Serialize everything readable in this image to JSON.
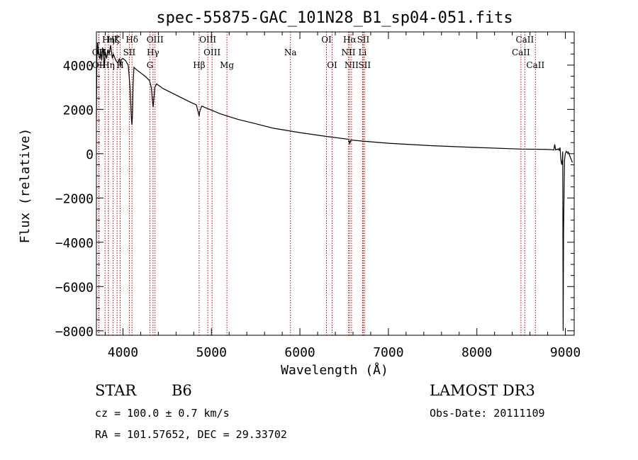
{
  "chart_data": {
    "type": "line",
    "title": "spec-55875-GAC_101N28_B1_sp04-051.fits",
    "xlabel": "Wavelength (Å)",
    "ylabel": "Flux (relative)",
    "xlim": [
      3700,
      9100
    ],
    "ylim": [
      -8200,
      5500
    ],
    "xticks": [
      4000,
      5000,
      6000,
      7000,
      8000,
      9000
    ],
    "xtick_labels": [
      "4000",
      "5000",
      "6000",
      "7000",
      "8000",
      "9000"
    ],
    "yticks": [
      4000,
      2000,
      0,
      -2000,
      -4000,
      -6000,
      -8000
    ],
    "ytick_labels": [
      "4000",
      "2000",
      "0",
      "−2000",
      "−4000",
      "−6000",
      "−8000"
    ],
    "series": [
      {
        "name": "spectrum",
        "color": "#000000",
        "x": [
          3700,
          3705,
          3712,
          3720,
          3730,
          3740,
          3750,
          3760,
          3770,
          3780,
          3790,
          3800,
          3815,
          3830,
          3845,
          3860,
          3880,
          3890,
          3900,
          3920,
          3940,
          3960,
          3970,
          3980,
          4000,
          4030,
          4060,
          4080,
          4095,
          4101,
          4107,
          4115,
          4125,
          4150,
          4200,
          4250,
          4300,
          4320,
          4335,
          4341,
          4347,
          4360,
          4380,
          4450,
          4550,
          4650,
          4750,
          4830,
          4855,
          4861,
          4867,
          4890,
          4950,
          5100,
          5300,
          5500,
          5700,
          6000,
          6300,
          6550,
          6563,
          6576,
          6700,
          7000,
          7500,
          8000,
          8500,
          8700,
          8800,
          8850,
          8870,
          8880,
          8890,
          8900,
          8910,
          8920,
          8930,
          8940,
          8950,
          8960,
          8968,
          8970,
          8975,
          8980,
          8990,
          9000,
          9010,
          9020,
          9030,
          9040,
          9050,
          9060,
          9070,
          9080
        ],
        "y": [
          1600,
          4200,
          5000,
          4800,
          4400,
          4300,
          4600,
          4200,
          4800,
          4500,
          3900,
          4600,
          4300,
          4700,
          4500,
          4900,
          4300,
          4500,
          4400,
          4200,
          4100,
          4300,
          3900,
          4250,
          4300,
          4200,
          4000,
          3000,
          1600,
          1300,
          1700,
          3200,
          3900,
          3800,
          3650,
          3500,
          3300,
          3000,
          2300,
          2100,
          2400,
          3000,
          3150,
          2950,
          2750,
          2550,
          2350,
          2200,
          1800,
          1700,
          1900,
          2150,
          2050,
          1800,
          1550,
          1350,
          1150,
          950,
          780,
          650,
          450,
          620,
          570,
          470,
          360,
          280,
          210,
          200,
          190,
          180,
          160,
          420,
          170,
          200,
          180,
          220,
          150,
          280,
          -300,
          -500,
          -200,
          100,
          -8000,
          -3500,
          -300,
          0,
          100,
          50,
          80,
          20,
          -100,
          -200,
          -300,
          -400
        ],
        "label": "spectrum"
      }
    ],
    "lines_top": [
      {
        "label": "Hη",
        "x": 3835
      },
      {
        "label": "Hζ",
        "x": 3889
      },
      {
        "label": "K",
        "x": 3934
      },
      {
        "label": "Hδ",
        "x": 4102
      },
      {
        "label": "OIII",
        "x": 4363
      },
      {
        "label": "OIII",
        "x": 4959
      },
      {
        "label": "OI",
        "x": 6300
      },
      {
        "label": "Hα",
        "x": 6563
      },
      {
        "label": "SII",
        "x": 6716
      },
      {
        "label": "CaII",
        "x": 8542
      }
    ],
    "lines_mid": [
      {
        "label": "OII",
        "x": 3727
      },
      {
        "label": "Hε",
        "x": 3798
      },
      {
        "label": "SII",
        "x": 4072
      },
      {
        "label": "Hγ",
        "x": 4340
      },
      {
        "label": "OIII",
        "x": 5007
      },
      {
        "label": "Na",
        "x": 5893
      },
      {
        "label": "NII",
        "x": 6548
      },
      {
        "label": "Li",
        "x": 6708
      },
      {
        "label": "CaII",
        "x": 8498
      }
    ],
    "lines_bot": [
      {
        "label": "OII",
        "x": 3729
      },
      {
        "label": "Hη",
        "x": 3836
      },
      {
        "label": "H",
        "x": 3968
      },
      {
        "label": "G",
        "x": 4305
      },
      {
        "label": "Hβ",
        "x": 4861
      },
      {
        "label": "Mg",
        "x": 5175
      },
      {
        "label": "OI",
        "x": 6364
      },
      {
        "label": "NII",
        "x": 6583
      },
      {
        "label": "SII",
        "x": 6731
      },
      {
        "label": "CaII",
        "x": 8662
      }
    ]
  },
  "info": {
    "object_class": "STAR",
    "subclass": "B6",
    "survey": "LAMOST DR3",
    "cz": "cz = 100.0 ± 0.7 km/s",
    "obs_date": "Obs-Date: 20111109",
    "radec": "RA = 101.57652, DEC =  29.33702"
  },
  "colors": {
    "line_marker": "#c00000",
    "spectrum": "#000000"
  }
}
